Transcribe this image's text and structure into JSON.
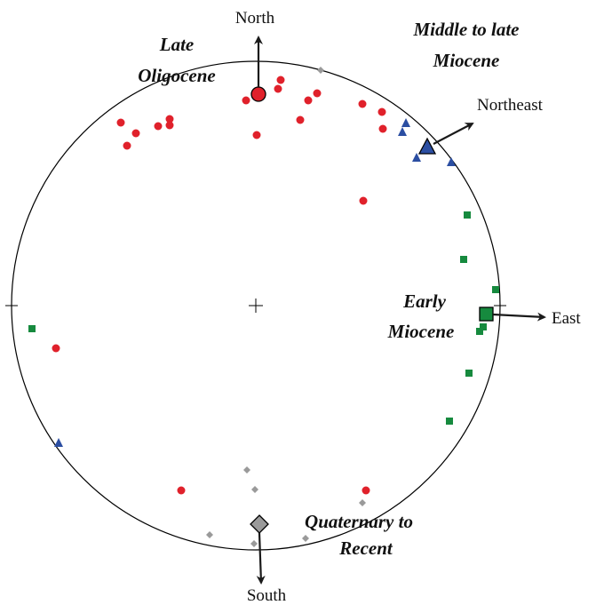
{
  "directions": {
    "north": "North",
    "northeast": "Northeast",
    "east": "East",
    "south": "South"
  },
  "periods": {
    "late_oligocene": {
      "line1": "Late",
      "line2": "Oligocene",
      "color": "#e0212b",
      "symbol": "circle"
    },
    "middle_to_late_miocene": {
      "line1": "Middle to late",
      "line2": "Miocene",
      "color": "#2b4ea2",
      "symbol": "triangle"
    },
    "early_miocene": {
      "line1": "Early",
      "line2": "Miocene",
      "color": "#168a3e",
      "symbol": "square"
    },
    "quaternary_to_recent": {
      "line1": "Quaternary to",
      "line2": "Recent",
      "color": "#9a9a9a",
      "symbol": "diamond"
    }
  },
  "colors": {
    "circle_stroke": "#000000",
    "arrow": "#1a1a1a"
  }
}
